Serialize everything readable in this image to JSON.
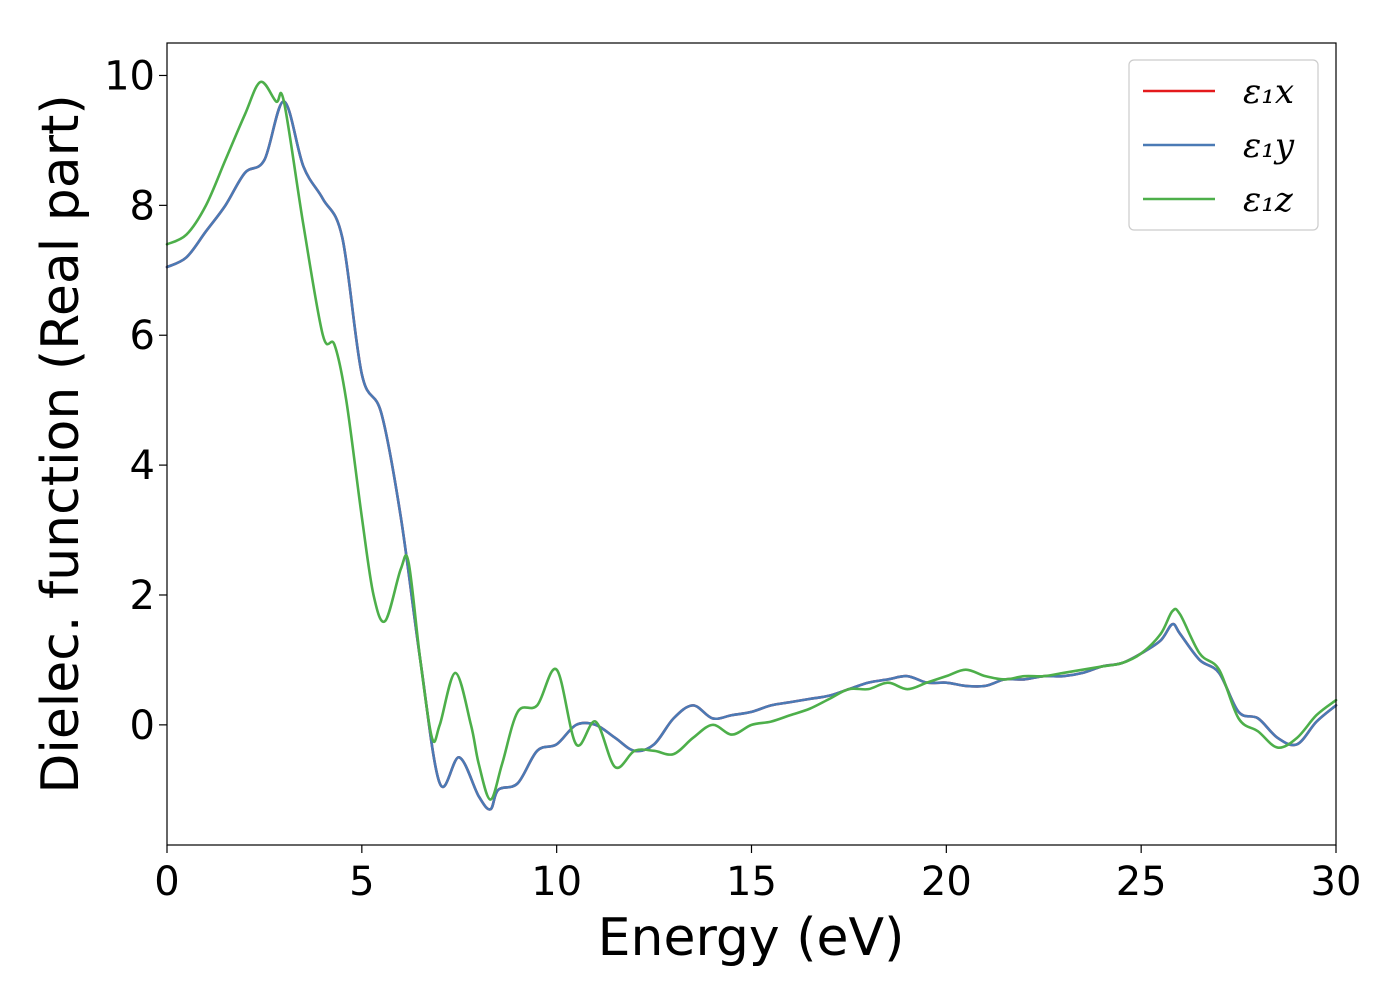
{
  "chart_data": {
    "type": "line",
    "title": "",
    "xlabel": "Energy (eV)",
    "ylabel": "Dielec. function (Real part)",
    "xlim": [
      0,
      30
    ],
    "ylim": [
      -1.85,
      10.5
    ],
    "xticks": [
      0,
      5,
      10,
      15,
      20,
      25,
      30
    ],
    "yticks": [
      0,
      2,
      4,
      6,
      8,
      10
    ],
    "xtick_labels": [
      "0",
      "5",
      "10",
      "15",
      "20",
      "25",
      "30"
    ],
    "ytick_labels": [
      "0",
      "2",
      "4",
      "6",
      "8",
      "10"
    ],
    "grid": false,
    "legend_position": "upper-right",
    "series": [
      {
        "name": "ε₁x",
        "color": "#e41a1c",
        "x": [
          0,
          0.5,
          1.0,
          1.5,
          2.0,
          2.5,
          3.0,
          3.5,
          4.0,
          4.5,
          5.0,
          5.5,
          6.0,
          6.5,
          7.0,
          7.5,
          8.0,
          8.3,
          8.5,
          9.0,
          9.5,
          10.0,
          10.5,
          11.0,
          11.5,
          12.0,
          12.5,
          13.0,
          13.5,
          14.0,
          14.5,
          15.0,
          15.5,
          16.0,
          16.5,
          17.0,
          17.5,
          18.0,
          18.5,
          19.0,
          19.5,
          20.0,
          20.5,
          21.0,
          21.5,
          22.0,
          22.5,
          23.0,
          23.5,
          24.0,
          24.5,
          25.0,
          25.5,
          25.8,
          26.0,
          26.5,
          27.0,
          27.5,
          28.0,
          28.5,
          29.0,
          29.5,
          30.0
        ],
        "y": [
          7.05,
          7.2,
          7.6,
          8.0,
          8.5,
          8.7,
          9.6,
          8.6,
          8.1,
          7.5,
          5.4,
          4.8,
          3.2,
          1.0,
          -0.9,
          -0.5,
          -1.1,
          -1.3,
          -1.0,
          -0.9,
          -0.4,
          -0.3,
          0.0,
          0.0,
          -0.2,
          -0.4,
          -0.3,
          0.1,
          0.3,
          0.1,
          0.15,
          0.2,
          0.3,
          0.35,
          0.4,
          0.45,
          0.55,
          0.65,
          0.7,
          0.75,
          0.65,
          0.65,
          0.6,
          0.6,
          0.7,
          0.7,
          0.75,
          0.75,
          0.8,
          0.9,
          0.95,
          1.1,
          1.3,
          1.55,
          1.4,
          1.0,
          0.8,
          0.2,
          0.1,
          -0.2,
          -0.3,
          0.05,
          0.3
        ]
      },
      {
        "name": "ε₁y",
        "color": "#4a7ab5",
        "x": [
          0,
          0.5,
          1.0,
          1.5,
          2.0,
          2.5,
          3.0,
          3.5,
          4.0,
          4.5,
          5.0,
          5.5,
          6.0,
          6.5,
          7.0,
          7.5,
          8.0,
          8.3,
          8.5,
          9.0,
          9.5,
          10.0,
          10.5,
          11.0,
          11.5,
          12.0,
          12.5,
          13.0,
          13.5,
          14.0,
          14.5,
          15.0,
          15.5,
          16.0,
          16.5,
          17.0,
          17.5,
          18.0,
          18.5,
          19.0,
          19.5,
          20.0,
          20.5,
          21.0,
          21.5,
          22.0,
          22.5,
          23.0,
          23.5,
          24.0,
          24.5,
          25.0,
          25.5,
          25.8,
          26.0,
          26.5,
          27.0,
          27.5,
          28.0,
          28.5,
          29.0,
          29.5,
          30.0
        ],
        "y": [
          7.05,
          7.2,
          7.6,
          8.0,
          8.5,
          8.7,
          9.6,
          8.6,
          8.1,
          7.5,
          5.4,
          4.8,
          3.2,
          1.0,
          -0.9,
          -0.5,
          -1.1,
          -1.3,
          -1.0,
          -0.9,
          -0.4,
          -0.3,
          0.0,
          0.0,
          -0.2,
          -0.4,
          -0.3,
          0.1,
          0.3,
          0.1,
          0.15,
          0.2,
          0.3,
          0.35,
          0.4,
          0.45,
          0.55,
          0.65,
          0.7,
          0.75,
          0.65,
          0.65,
          0.6,
          0.6,
          0.7,
          0.7,
          0.75,
          0.75,
          0.8,
          0.9,
          0.95,
          1.1,
          1.3,
          1.55,
          1.4,
          1.0,
          0.8,
          0.2,
          0.1,
          -0.2,
          -0.3,
          0.05,
          0.3
        ]
      },
      {
        "name": "ε₁z",
        "color": "#4daf4a",
        "x": [
          0,
          0.5,
          1.0,
          1.5,
          2.0,
          2.4,
          2.8,
          3.0,
          3.5,
          4.0,
          4.3,
          4.6,
          5.0,
          5.3,
          5.6,
          6.0,
          6.2,
          6.5,
          6.8,
          7.0,
          7.4,
          7.8,
          8.0,
          8.3,
          8.6,
          9.0,
          9.5,
          10.0,
          10.5,
          11.0,
          11.5,
          12.0,
          12.5,
          13.0,
          13.5,
          14.0,
          14.5,
          15.0,
          15.5,
          16.0,
          16.5,
          17.0,
          17.5,
          18.0,
          18.5,
          19.0,
          19.5,
          20.0,
          20.5,
          21.0,
          21.5,
          22.0,
          22.5,
          23.0,
          23.5,
          24.0,
          24.5,
          25.0,
          25.5,
          25.8,
          26.0,
          26.5,
          27.0,
          27.5,
          28.0,
          28.5,
          29.0,
          29.5,
          30.0
        ],
        "y": [
          7.4,
          7.55,
          8.0,
          8.7,
          9.4,
          9.9,
          9.6,
          9.6,
          7.7,
          6.0,
          5.85,
          5.0,
          3.2,
          2.0,
          1.6,
          2.4,
          2.5,
          1.0,
          -0.2,
          0.0,
          0.8,
          0.0,
          -0.6,
          -1.15,
          -0.6,
          0.2,
          0.3,
          0.85,
          -0.3,
          0.05,
          -0.65,
          -0.4,
          -0.4,
          -0.45,
          -0.2,
          0.0,
          -0.15,
          0.0,
          0.05,
          0.15,
          0.25,
          0.4,
          0.55,
          0.55,
          0.65,
          0.55,
          0.65,
          0.75,
          0.85,
          0.75,
          0.7,
          0.75,
          0.75,
          0.8,
          0.85,
          0.9,
          0.95,
          1.1,
          1.4,
          1.75,
          1.7,
          1.1,
          0.85,
          0.1,
          -0.1,
          -0.35,
          -0.2,
          0.15,
          0.38
        ]
      }
    ]
  }
}
